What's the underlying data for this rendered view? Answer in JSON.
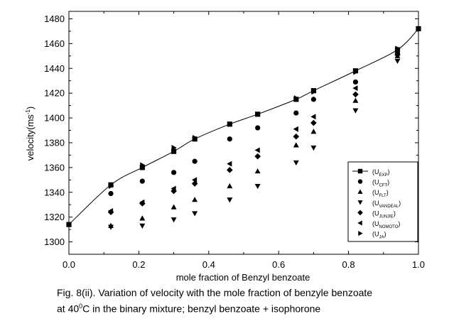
{
  "chart_data": {
    "type": "scatter",
    "xlabel": "mole fraction of Benzyl benzoate",
    "ylabel": "velocity(ms",
    "ylabel_sup": "-1",
    "ylabel_end": ")",
    "xlim": [
      0.0,
      1.0
    ],
    "ylim": [
      1290,
      1486
    ],
    "xticks": [
      0.0,
      0.2,
      0.4,
      0.6,
      0.8,
      1.0
    ],
    "xtick_labels": [
      "0.0",
      "0.2",
      "0.4",
      "0.6",
      "0.8",
      "1.0"
    ],
    "yticks": [
      1300,
      1320,
      1340,
      1360,
      1380,
      1400,
      1420,
      1440,
      1460,
      1480
    ],
    "ytick_labels": [
      "1300",
      "1320",
      "1340",
      "1360",
      "1380",
      "1400",
      "1420",
      "1440",
      "1460",
      "1480"
    ],
    "x": [
      0.0,
      0.12,
      0.21,
      0.3,
      0.36,
      0.46,
      0.54,
      0.65,
      0.7,
      0.82,
      0.94,
      1.0
    ],
    "series": [
      {
        "name": "(U",
        "sub": "EXP",
        "close": ")",
        "marker": "square",
        "values": [
          1314,
          1346,
          1360,
          1373,
          1383,
          1395,
          1403,
          1415,
          1422,
          1438,
          1455,
          1472
        ]
      },
      {
        "name": "(U",
        "sub": "CFT",
        "close": ")",
        "marker": "circle",
        "values": [
          null,
          1339,
          1349,
          1356,
          1365,
          1383,
          1392,
          1404,
          1415,
          1429,
          1452,
          null
        ]
      },
      {
        "name": "(U",
        "sub": "FLT",
        "close": ")",
        "marker": "triangle-up",
        "values": [
          null,
          1313,
          1319,
          1328,
          1334,
          1345,
          1357,
          1378,
          1389,
          1414,
          1450,
          null
        ]
      },
      {
        "name": "(U",
        "sub": "VANDEAL",
        "close": ")",
        "marker": "triangle-down",
        "values": [
          null,
          1312,
          1313,
          1318,
          1323,
          1334,
          1345,
          1364,
          1376,
          1406,
          1446,
          null
        ]
      },
      {
        "name": "(U",
        "sub": "JUNJIE",
        "close": ")",
        "marker": "diamond",
        "values": [
          null,
          1324,
          1331,
          1341,
          1347,
          1358,
          1369,
          1385,
          1396,
          1419,
          1451,
          null
        ]
      },
      {
        "name": "(U",
        "sub": "NOMOTO",
        "close": ")",
        "marker": "triangle-left",
        "values": [
          null,
          1325,
          1332,
          1343,
          1350,
          1363,
          1374,
          1391,
          1401,
          1424,
          1454,
          null
        ]
      },
      {
        "name": "(U",
        "sub": "JA",
        "close": ")",
        "marker": "triangle-right",
        "values": [
          null,
          1345,
          1362,
          1376,
          1384,
          1395,
          1403,
          1416,
          1421,
          1437,
          1456,
          null
        ]
      }
    ]
  },
  "caption": {
    "line1": "Fig. 8(ii). Variation of velocity with the mole fraction of benzyle benzoate",
    "line2_a": "at 40",
    "line2_sup": "0",
    "line2_b": "C in the binary mixture; benzyl benzoate + isophorone"
  }
}
